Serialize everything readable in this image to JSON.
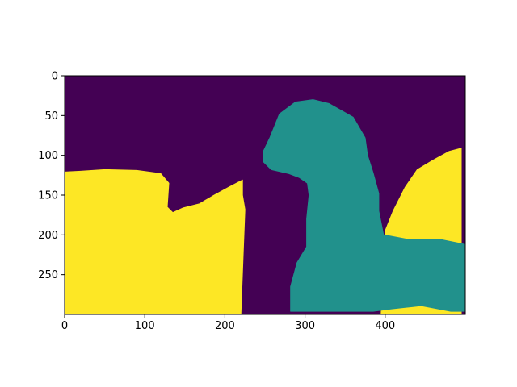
{
  "chart_data": {
    "type": "heatmap",
    "subtype": "segmentation-mask",
    "title": "",
    "xlabel": "",
    "ylabel": "",
    "image_size": {
      "width": 500,
      "height": 300
    },
    "xlim": [
      0,
      500
    ],
    "ylim": [
      300,
      0
    ],
    "x_ticks": [
      0,
      100,
      200,
      300,
      400
    ],
    "y_ticks": [
      0,
      50,
      100,
      150,
      200,
      250
    ],
    "colormap": "viridis",
    "grid": false,
    "legend": "none",
    "classes": [
      {
        "value": 0,
        "color": "#440154",
        "region": "background"
      },
      {
        "value": 1,
        "color": "#21918c",
        "region": "object"
      },
      {
        "value": 2,
        "color": "#fde725",
        "region": "foreground"
      }
    ],
    "regions": {
      "yellow_left": [
        [
          0,
          300
        ],
        [
          0,
          121
        ],
        [
          20,
          120
        ],
        [
          50,
          118
        ],
        [
          90,
          119
        ],
        [
          120,
          123
        ],
        [
          130,
          135
        ],
        [
          128,
          165
        ],
        [
          135,
          172
        ],
        [
          148,
          166
        ],
        [
          168,
          161
        ],
        [
          185,
          151
        ],
        [
          205,
          140
        ],
        [
          222,
          131
        ],
        [
          222,
          150
        ],
        [
          225,
          168
        ],
        [
          223,
          220
        ],
        [
          220,
          300
        ]
      ],
      "yellow_right": [
        [
          495,
          300
        ],
        [
          495,
          91
        ],
        [
          480,
          95
        ],
        [
          460,
          106
        ],
        [
          440,
          118
        ],
        [
          425,
          140
        ],
        [
          410,
          170
        ],
        [
          400,
          195
        ],
        [
          395,
          300
        ]
      ],
      "teal_object": [
        [
          282,
          296
        ],
        [
          282,
          265
        ],
        [
          290,
          235
        ],
        [
          302,
          215
        ],
        [
          302,
          180
        ],
        [
          305,
          150
        ],
        [
          303,
          135
        ],
        [
          293,
          128
        ],
        [
          280,
          123
        ],
        [
          258,
          118
        ],
        [
          248,
          108
        ],
        [
          248,
          95
        ],
        [
          256,
          78
        ],
        [
          268,
          48
        ],
        [
          288,
          33
        ],
        [
          310,
          30
        ],
        [
          330,
          35
        ],
        [
          360,
          52
        ],
        [
          375,
          78
        ],
        [
          378,
          100
        ],
        [
          385,
          122
        ],
        [
          392,
          148
        ],
        [
          392,
          170
        ],
        [
          398,
          200
        ],
        [
          430,
          206
        ],
        [
          470,
          206
        ],
        [
          505,
          213
        ],
        [
          518,
          228
        ],
        [
          522,
          253
        ],
        [
          530,
          278
        ],
        [
          528,
          296
        ],
        [
          482,
          296
        ],
        [
          445,
          289
        ],
        [
          408,
          293
        ],
        [
          385,
          296
        ],
        [
          350,
          296
        ],
        [
          320,
          296
        ]
      ]
    }
  }
}
